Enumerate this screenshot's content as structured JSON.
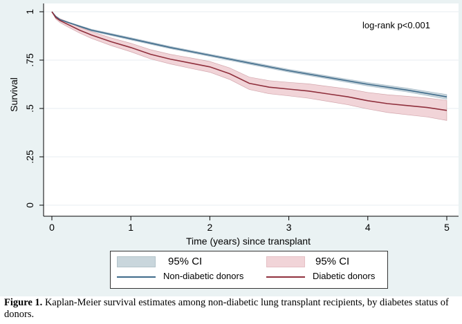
{
  "chart_data": {
    "type": "line",
    "xlabel": "Time (years) since transplant",
    "ylabel": "Survival",
    "xlim": [
      0,
      5
    ],
    "ylim": [
      0,
      1
    ],
    "x_ticks": [
      "0",
      "1",
      "2",
      "3",
      "4",
      "5"
    ],
    "y_ticks": [
      "0",
      ".25",
      ".5",
      ".75",
      "1"
    ],
    "grid": "horizontal",
    "annotation": "log-rank p<0.001",
    "series": [
      {
        "name": "Non-diabetic donors",
        "ci_label": "95% CI",
        "color": "#3e6a8a",
        "ci_fill": "#c9d6dc",
        "x": [
          0,
          0.05,
          0.1,
          0.2,
          0.35,
          0.5,
          1,
          1.5,
          2,
          2.5,
          3,
          3.5,
          4,
          4.5,
          5
        ],
        "y": [
          1.0,
          0.975,
          0.96,
          0.945,
          0.925,
          0.905,
          0.86,
          0.815,
          0.775,
          0.735,
          0.695,
          0.66,
          0.625,
          0.595,
          0.56
        ],
        "ci_lower": [
          1.0,
          0.972,
          0.957,
          0.941,
          0.921,
          0.9,
          0.854,
          0.809,
          0.769,
          0.728,
          0.688,
          0.652,
          0.616,
          0.585,
          0.548
        ],
        "ci_upper": [
          1.0,
          0.978,
          0.963,
          0.949,
          0.929,
          0.91,
          0.866,
          0.821,
          0.781,
          0.742,
          0.702,
          0.668,
          0.634,
          0.605,
          0.572
        ]
      },
      {
        "name": "Diabetic donors",
        "ci_label": "95% CI",
        "color": "#8f2f3c",
        "ci_fill": "#f1d4d8",
        "x": [
          0,
          0.05,
          0.1,
          0.2,
          0.35,
          0.5,
          0.75,
          1,
          1.25,
          1.5,
          1.75,
          2,
          2.25,
          2.5,
          2.75,
          3,
          3.25,
          3.5,
          3.75,
          4,
          4.25,
          4.5,
          4.75,
          5
        ],
        "y": [
          1.0,
          0.97,
          0.955,
          0.935,
          0.905,
          0.88,
          0.845,
          0.815,
          0.78,
          0.755,
          0.735,
          0.715,
          0.68,
          0.63,
          0.61,
          0.6,
          0.59,
          0.575,
          0.56,
          0.54,
          0.525,
          0.515,
          0.505,
          0.49
        ],
        "ci_lower": [
          1.0,
          0.962,
          0.945,
          0.922,
          0.89,
          0.862,
          0.825,
          0.793,
          0.756,
          0.73,
          0.708,
          0.687,
          0.65,
          0.598,
          0.576,
          0.565,
          0.553,
          0.536,
          0.519,
          0.497,
          0.479,
          0.467,
          0.456,
          0.438
        ],
        "ci_upper": [
          1.0,
          0.978,
          0.965,
          0.948,
          0.92,
          0.898,
          0.865,
          0.837,
          0.804,
          0.78,
          0.762,
          0.743,
          0.71,
          0.662,
          0.644,
          0.635,
          0.627,
          0.614,
          0.601,
          0.583,
          0.571,
          0.563,
          0.554,
          0.542
        ]
      }
    ]
  },
  "legend": {
    "ci_label_1": "95% CI",
    "ci_label_2": "95% CI",
    "series_1": "Non-diabetic donors",
    "series_2": "Diabetic donors"
  },
  "caption": {
    "label": "Figure 1.",
    "text": " Kaplan-Meier survival estimates among non-diabetic lung transplant recipients, by diabetes status of donors."
  }
}
